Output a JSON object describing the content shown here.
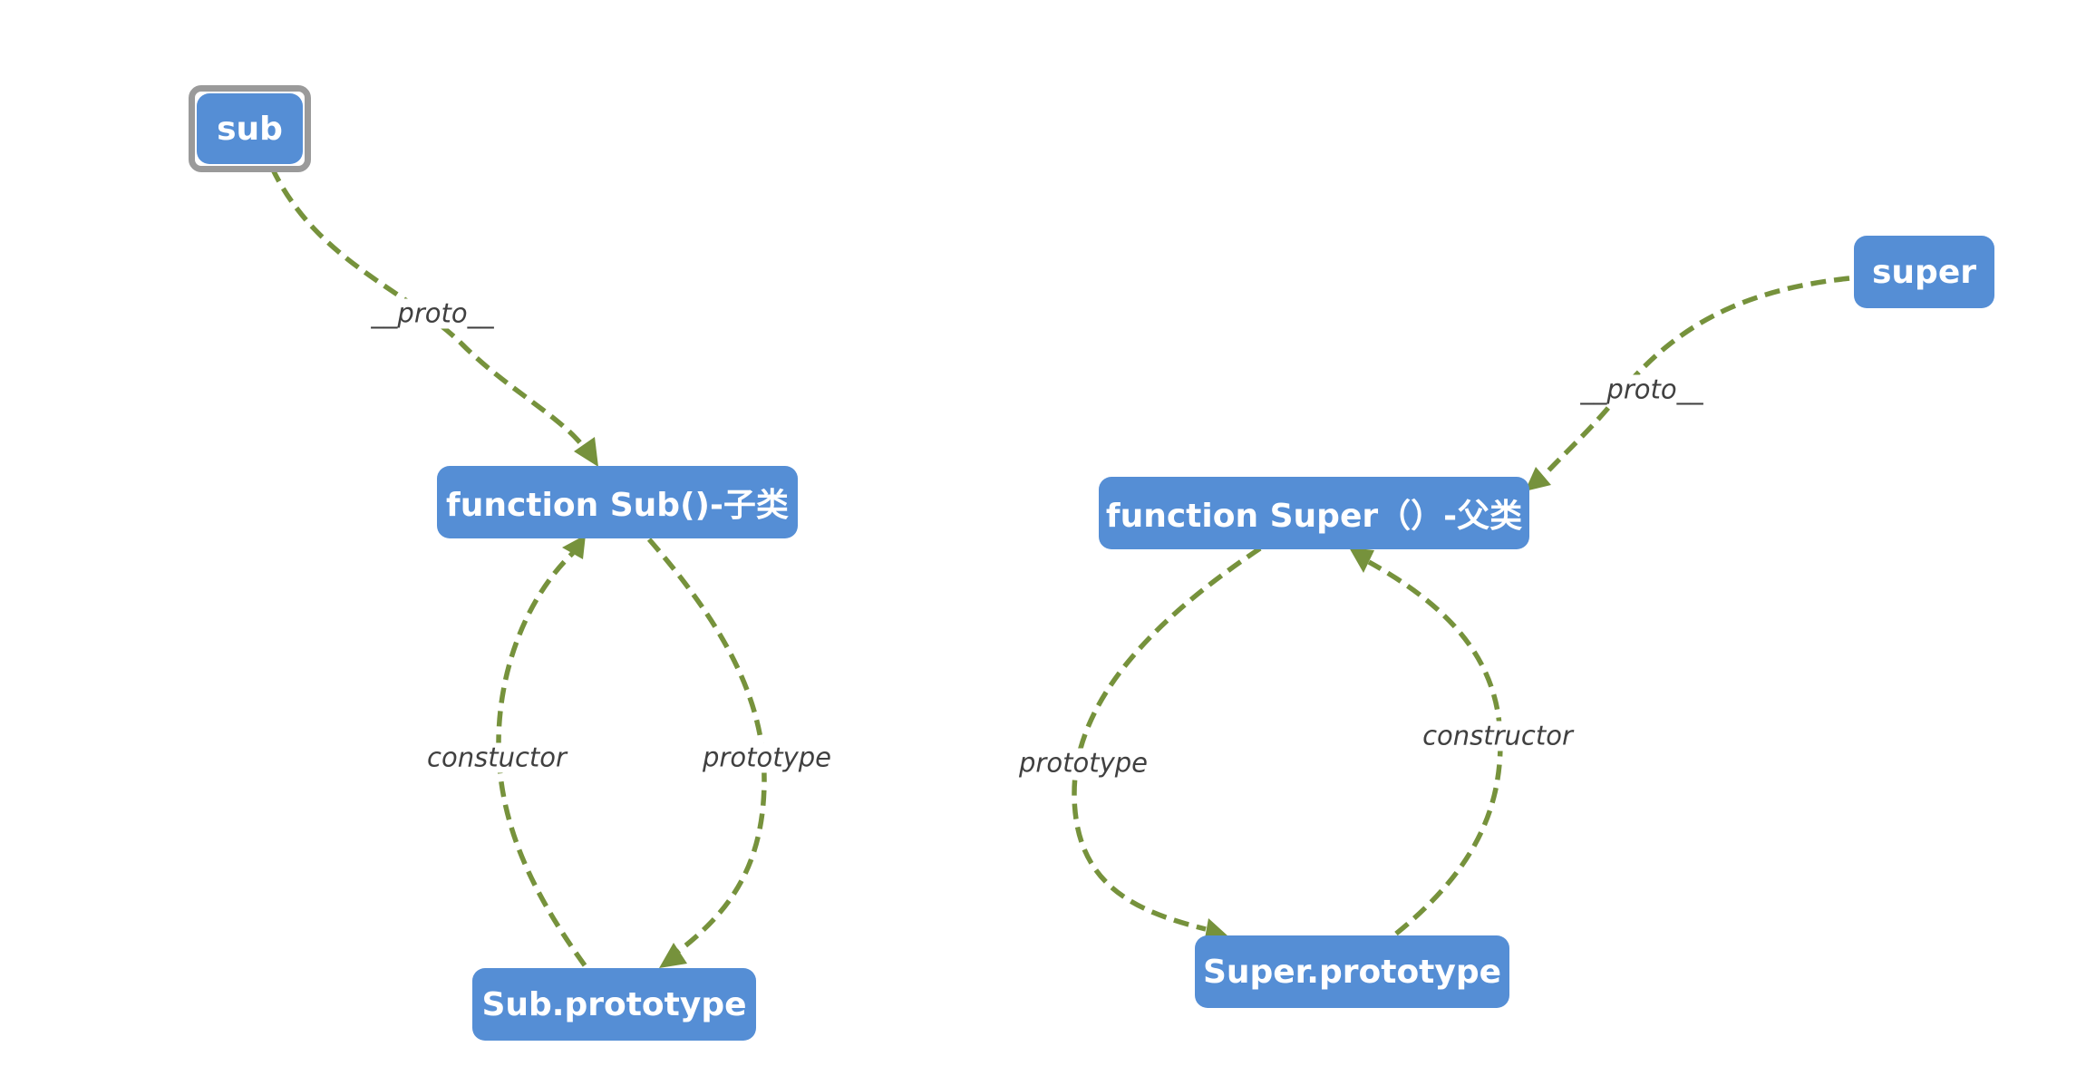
{
  "nodes": {
    "sub": "sub",
    "sub_fn": "function Sub()-子类",
    "sub_proto": "Sub.prototype",
    "super": "super",
    "super_fn": "function Super（）-父类",
    "super_proto": "Super.prototype"
  },
  "edges": {
    "sub_proto_link": "__proto__",
    "sub_constructor": "constuctor",
    "sub_prototype": "prototype",
    "super_proto_link": "__proto__",
    "super_prototype": "prototype",
    "super_constructor": "constructor"
  },
  "colors": {
    "node_fill": "#558ed5",
    "node_text": "#ffffff",
    "edge": "#76923c",
    "selection": "#9a9a9a"
  }
}
